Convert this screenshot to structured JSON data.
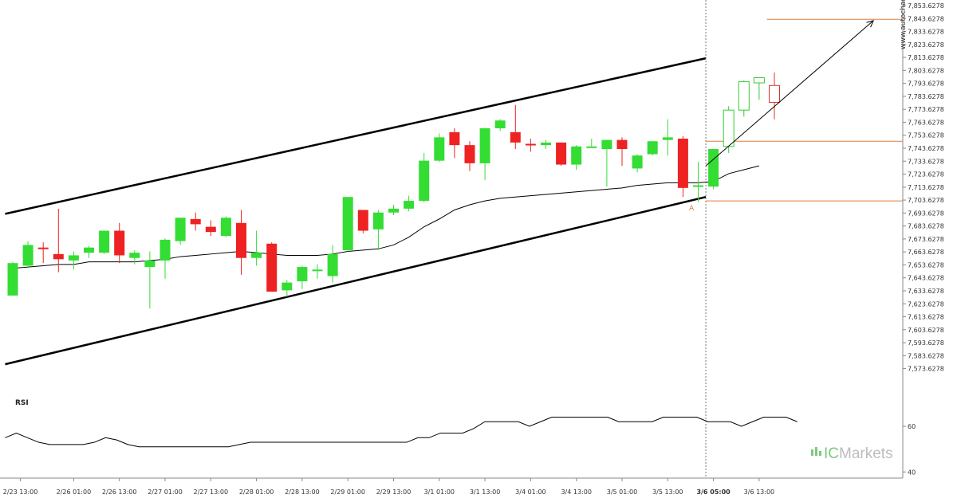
{
  "colors": {
    "up": "#33dd33",
    "down": "#ee2222",
    "projected_up_fill": "#ffffff",
    "projected_up_stroke": "#33cc33",
    "projected_down_fill": "#ffffff",
    "projected_down_stroke": "#dd3333",
    "channel": "#000000",
    "moving_average": "#000000",
    "level_lines": "#e07b39",
    "arrow": "#000000",
    "rsi": "#000000",
    "axis": "#888888",
    "marker": "#e07b39",
    "logo_dots": "#7ec97e",
    "logo_text": "#bdbdbd"
  },
  "watermark": "www.autochartist.com",
  "logo": {
    "prefix": "IC",
    "suffix": "Markets"
  },
  "marker_label": "A",
  "chart_data": [
    {
      "type": "candlestick",
      "title": "",
      "xlabel": "",
      "ylabel": "",
      "ylim": [
        7566.6278,
        7853.6278
      ],
      "grid": false,
      "y_ticks": [
        "7,853.6278",
        "7,843.6278",
        "7,833.6278",
        "7,823.6278",
        "7,813.6278",
        "7,803.6278",
        "7,793.6278",
        "7,783.6278",
        "7,773.6278",
        "7,763.6278",
        "7,753.6278",
        "7,743.6278",
        "7,733.6278",
        "7,723.6278",
        "7,713.6278",
        "7,703.6278",
        "7,693.6278",
        "7,683.6278",
        "7,673.6278",
        "7,663.6278",
        "7,653.6278",
        "7,643.6278",
        "7,633.6278",
        "7,623.6278",
        "7,613.6278",
        "7,603.6278",
        "7,593.6278",
        "7,583.6278",
        "7,573.6278"
      ],
      "x_ticks": [
        {
          "index": 0.5,
          "label": "2/23 13:00",
          "bold": false
        },
        {
          "index": 4,
          "label": "2/26 01:00",
          "bold": false
        },
        {
          "index": 7,
          "label": "2/26 13:00",
          "bold": false
        },
        {
          "index": 10,
          "label": "2/27 01:00",
          "bold": false
        },
        {
          "index": 13,
          "label": "2/27 13:00",
          "bold": false
        },
        {
          "index": 16,
          "label": "2/28 01:00",
          "bold": false
        },
        {
          "index": 19,
          "label": "2/28 13:00",
          "bold": false
        },
        {
          "index": 22,
          "label": "2/29 01:00",
          "bold": false
        },
        {
          "index": 25,
          "label": "2/29 13:00",
          "bold": false
        },
        {
          "index": 28,
          "label": "3/1 01:00",
          "bold": false
        },
        {
          "index": 31,
          "label": "3/1 13:00",
          "bold": false
        },
        {
          "index": 34,
          "label": "3/4 01:00",
          "bold": false
        },
        {
          "index": 37,
          "label": "3/4 13:00",
          "bold": false
        },
        {
          "index": 40,
          "label": "3/5 01:00",
          "bold": false
        },
        {
          "index": 43,
          "label": "3/5 13:00",
          "bold": false
        },
        {
          "index": 46,
          "label": "3/6 05:00",
          "bold": true
        },
        {
          "index": 49,
          "label": "3/6 13:00",
          "bold": false
        }
      ],
      "candles": [
        {
          "o": 7630,
          "h": 7656,
          "l": 7630,
          "c": 7655
        },
        {
          "o": 7653,
          "h": 7672,
          "l": 7651,
          "c": 7669
        },
        {
          "o": 7667,
          "h": 7671,
          "l": 7655,
          "c": 7666
        },
        {
          "o": 7662,
          "h": 7697,
          "l": 7648,
          "c": 7658
        },
        {
          "o": 7657,
          "h": 7664,
          "l": 7650,
          "c": 7661
        },
        {
          "o": 7663,
          "h": 7668,
          "l": 7659,
          "c": 7667
        },
        {
          "o": 7663,
          "h": 7680,
          "l": 7662,
          "c": 7680
        },
        {
          "o": 7680,
          "h": 7686,
          "l": 7655,
          "c": 7661
        },
        {
          "o": 7659,
          "h": 7665,
          "l": 7654,
          "c": 7663
        },
        {
          "o": 7652,
          "h": 7664,
          "l": 7620,
          "c": 7657
        },
        {
          "o": 7657,
          "h": 7674,
          "l": 7643,
          "c": 7673
        },
        {
          "o": 7672,
          "h": 7689,
          "l": 7669,
          "c": 7690
        },
        {
          "o": 7689,
          "h": 7694,
          "l": 7680,
          "c": 7685
        },
        {
          "o": 7683,
          "h": 7688,
          "l": 7676,
          "c": 7679
        },
        {
          "o": 7676,
          "h": 7691,
          "l": 7675,
          "c": 7690
        },
        {
          "o": 7686,
          "h": 7696,
          "l": 7646,
          "c": 7659
        },
        {
          "o": 7659,
          "h": 7680,
          "l": 7653,
          "c": 7663
        },
        {
          "o": 7670,
          "h": 7671,
          "l": 7633,
          "c": 7633
        },
        {
          "o": 7634,
          "h": 7642,
          "l": 7629,
          "c": 7640
        },
        {
          "o": 7641,
          "h": 7653,
          "l": 7635,
          "c": 7652
        },
        {
          "o": 7649,
          "h": 7654,
          "l": 7643,
          "c": 7650
        },
        {
          "o": 7645,
          "h": 7669,
          "l": 7640,
          "c": 7662
        },
        {
          "o": 7665,
          "h": 7706,
          "l": 7664,
          "c": 7706
        },
        {
          "o": 7696,
          "h": 7696,
          "l": 7678,
          "c": 7680
        },
        {
          "o": 7681,
          "h": 7696,
          "l": 7665,
          "c": 7694
        },
        {
          "o": 7694,
          "h": 7700,
          "l": 7692,
          "c": 7697
        },
        {
          "o": 7697,
          "h": 7707,
          "l": 7695,
          "c": 7703
        },
        {
          "o": 7703,
          "h": 7740,
          "l": 7702,
          "c": 7734
        },
        {
          "o": 7734,
          "h": 7755,
          "l": 7733,
          "c": 7752
        },
        {
          "o": 7756,
          "h": 7759,
          "l": 7736,
          "c": 7746
        },
        {
          "o": 7746,
          "h": 7749,
          "l": 7726,
          "c": 7732
        },
        {
          "o": 7732,
          "h": 7759,
          "l": 7719,
          "c": 7759
        },
        {
          "o": 7759,
          "h": 7766,
          "l": 7757,
          "c": 7765
        },
        {
          "o": 7756,
          "h": 7777,
          "l": 7743,
          "c": 7748
        },
        {
          "o": 7747,
          "h": 7751,
          "l": 7741,
          "c": 7746
        },
        {
          "o": 7746,
          "h": 7750,
          "l": 7743,
          "c": 7748
        },
        {
          "o": 7748,
          "h": 7748,
          "l": 7730,
          "c": 7731
        },
        {
          "o": 7731,
          "h": 7746,
          "l": 7727,
          "c": 7745
        },
        {
          "o": 7745,
          "h": 7751,
          "l": 7744,
          "c": 7745
        },
        {
          "o": 7743,
          "h": 7750,
          "l": 7714,
          "c": 7750
        },
        {
          "o": 7750,
          "h": 7752,
          "l": 7730,
          "c": 7743
        },
        {
          "o": 7728,
          "h": 7739,
          "l": 7725,
          "c": 7738
        },
        {
          "o": 7739,
          "h": 7749,
          "l": 7738,
          "c": 7749
        },
        {
          "o": 7750,
          "h": 7766,
          "l": 7738,
          "c": 7752
        },
        {
          "o": 7751,
          "h": 7753,
          "l": 7706,
          "c": 7713
        },
        {
          "o": 7714,
          "h": 7733,
          "l": 7702,
          "c": 7715
        },
        {
          "o": 7714,
          "h": 7743,
          "l": 7712,
          "c": 7743
        }
      ],
      "projected_candles": [
        {
          "o": 7745,
          "h": 7776,
          "l": 7740,
          "c": 7773
        },
        {
          "o": 7773,
          "h": 7796,
          "l": 7768,
          "c": 7795
        },
        {
          "o": 7794,
          "h": 7798,
          "l": 7781,
          "c": 7798
        },
        {
          "o": 7792,
          "h": 7802,
          "l": 7766,
          "c": 7779
        }
      ],
      "moving_average": [
        7651,
        7652,
        7653,
        7654,
        7654,
        7656,
        7656,
        7656,
        7656,
        7657,
        7658,
        7660,
        7661,
        7662,
        7663,
        7664,
        7663,
        7662,
        7661,
        7661,
        7661,
        7662,
        7664,
        7665,
        7666,
        7669,
        7675,
        7683,
        7689,
        7696,
        7700,
        7703,
        7705,
        7706,
        7707,
        7708,
        7709,
        7710,
        7711,
        7712,
        7713,
        7715,
        7716,
        7717,
        7717,
        7717,
        7718,
        7724,
        7727,
        7730
      ],
      "channel_upper": [
        [
          -0.5,
          7693
        ],
        [
          45.5,
          7813
        ]
      ],
      "channel_lower": [
        [
          -0.5,
          7577
        ],
        [
          45.5,
          7706
        ]
      ],
      "target_level": 7843,
      "breakout_level": 7749,
      "support_level": 7703,
      "arrow": [
        [
          45.5,
          7730
        ],
        [
          56.5,
          7842
        ]
      ],
      "current_time_index": 45.5
    },
    {
      "type": "line",
      "title": "RSI",
      "ylim": [
        38,
        75
      ],
      "y_ticks": [
        60,
        40
      ],
      "values": [
        55,
        57,
        55,
        53,
        52,
        52,
        52,
        52,
        53,
        55,
        54,
        52,
        51,
        51,
        51,
        51,
        51,
        51,
        51,
        51,
        51,
        52,
        53,
        53,
        53,
        53,
        53,
        53,
        53,
        53,
        53,
        53,
        53,
        53,
        53,
        53,
        53,
        55,
        55,
        57,
        57,
        57,
        59,
        62,
        62,
        62,
        62,
        60,
        62,
        64,
        64,
        64,
        64,
        64,
        64,
        62,
        62,
        62,
        62,
        64,
        64,
        64,
        64,
        62,
        62,
        62,
        60,
        62,
        64,
        64,
        64,
        62
      ],
      "x_range": [
        -0.5,
        51.5
      ]
    }
  ]
}
